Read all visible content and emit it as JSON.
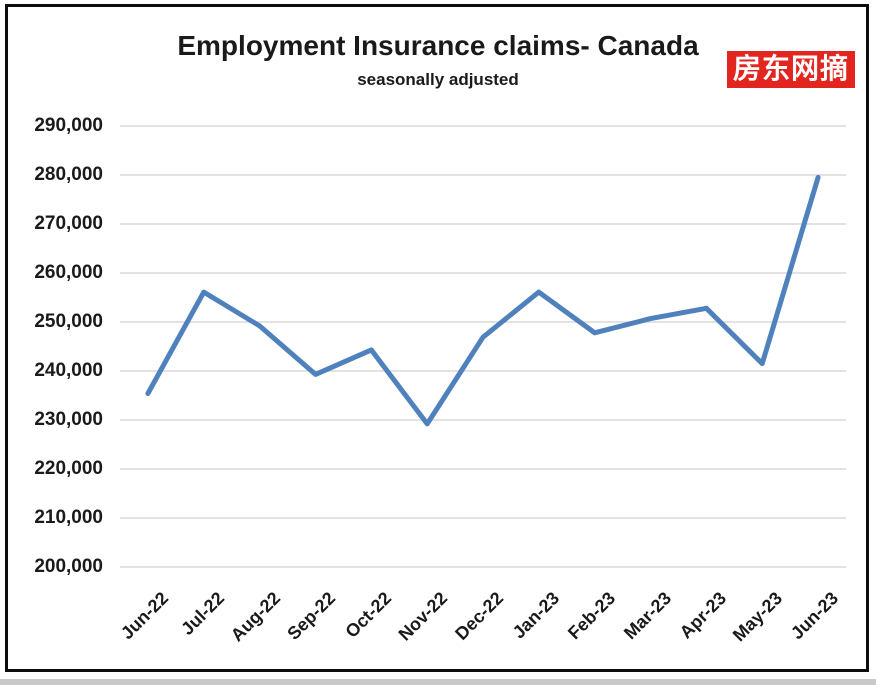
{
  "watermark": {
    "text": "房东网摘",
    "bg_color": "#e2251f",
    "text_color": "#ffffff"
  },
  "chart_data": {
    "type": "line",
    "title": "Employment Insurance claims- Canada",
    "subtitle": "seasonally adjusted",
    "categories": [
      "Jun-22",
      "Jul-22",
      "Aug-22",
      "Sep-22",
      "Oct-22",
      "Nov-22",
      "Dec-22",
      "Jan-23",
      "Feb-23",
      "Mar-23",
      "Apr-23",
      "May-23",
      "Jun-23"
    ],
    "series": [
      {
        "name": "Employment Insurance claims (seasonally adjusted)",
        "values": [
          235400,
          256100,
          249200,
          239300,
          244300,
          229200,
          246900,
          256100,
          247800,
          250700,
          252800,
          241500,
          279500
        ]
      }
    ],
    "ylim": [
      200000,
      290000
    ],
    "ytick_step": 10000,
    "yticks": [
      {
        "value": 200000,
        "label": "200,000"
      },
      {
        "value": 210000,
        "label": "210,000"
      },
      {
        "value": 220000,
        "label": "220,000"
      },
      {
        "value": 230000,
        "label": "230,000"
      },
      {
        "value": 240000,
        "label": "240,000"
      },
      {
        "value": 250000,
        "label": "250,000"
      },
      {
        "value": 260000,
        "label": "260,000"
      },
      {
        "value": 270000,
        "label": "270,000"
      },
      {
        "value": 280000,
        "label": "280,000"
      },
      {
        "value": 290000,
        "label": "290,000"
      }
    ],
    "xlabel": "",
    "ylabel": "",
    "grid": true,
    "legend": "none",
    "line_color": "#4f81bd",
    "gridline_color": "#d9d9d9"
  }
}
